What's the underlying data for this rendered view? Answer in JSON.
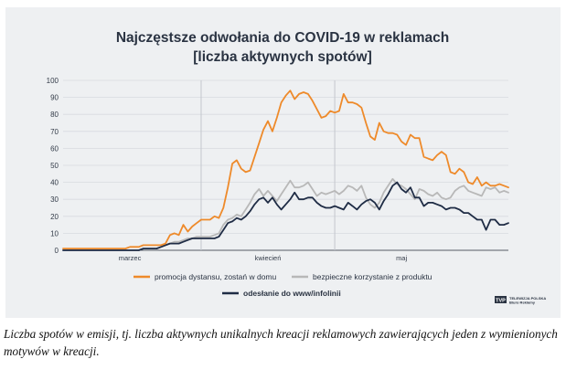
{
  "chart_data": {
    "type": "line",
    "title_lines": [
      "Najczęstsze odwołania do COVID-19 w reklamach",
      "[liczba aktywnych spotów]"
    ],
    "ylim": [
      0,
      100
    ],
    "yticks": [
      0,
      10,
      20,
      30,
      40,
      50,
      60,
      70,
      80,
      90,
      100
    ],
    "month_labels": [
      {
        "label": "marzec",
        "x": 15
      },
      {
        "label": "kwiecień",
        "x": 46
      },
      {
        "label": "maj",
        "x": 76
      }
    ],
    "month_dividers": [
      31,
      61
    ],
    "series": [
      {
        "name": "promocja dystansu, zostań w domu",
        "color": "#ee8a2a",
        "values": [
          1,
          1,
          1,
          1,
          1,
          1,
          1,
          1,
          1,
          1,
          1,
          1,
          1,
          1,
          1,
          2,
          2,
          2,
          3,
          3,
          3,
          3,
          3,
          4,
          9,
          10,
          9,
          15,
          11,
          14,
          16,
          18,
          18,
          18,
          20,
          19,
          25,
          37,
          51,
          53,
          48,
          46,
          47,
          55,
          63,
          71,
          76,
          70,
          78,
          87,
          91,
          94,
          89,
          92,
          93,
          92,
          88,
          83,
          78,
          79,
          82,
          81,
          82,
          92,
          87,
          87,
          86,
          84,
          75,
          67,
          65,
          75,
          70,
          69,
          69,
          68,
          64,
          62,
          68,
          66,
          66,
          55,
          54,
          53,
          56,
          58,
          56,
          46,
          45,
          48,
          46,
          40,
          39,
          43,
          38,
          40,
          38,
          38,
          39,
          38,
          37
        ]
      },
      {
        "name": "bezpieczne korzystanie z produktu",
        "color": "#b8b8b8",
        "values": [
          0,
          0,
          0,
          0,
          0,
          0,
          0,
          0,
          0,
          0,
          0,
          0,
          0,
          0,
          0,
          0,
          0,
          0,
          1,
          1,
          1,
          1,
          2,
          3,
          4,
          5,
          5,
          6,
          7,
          7,
          8,
          8,
          8,
          8,
          9,
          10,
          15,
          18,
          19,
          21,
          20,
          24,
          28,
          33,
          36,
          32,
          35,
          32,
          29,
          33,
          37,
          41,
          37,
          37,
          38,
          40,
          36,
          32,
          34,
          33,
          34,
          35,
          33,
          35,
          38,
          37,
          35,
          38,
          31,
          27,
          25,
          28,
          34,
          38,
          42,
          39,
          38,
          36,
          33,
          30,
          36,
          35,
          33,
          32,
          34,
          31,
          30,
          31,
          35,
          37,
          38,
          35,
          34,
          33,
          32,
          37,
          36,
          37,
          34,
          35,
          34
        ]
      },
      {
        "name": "odesłanie do www/infolinii",
        "color": "#1f2c45",
        "values": [
          0,
          0,
          0,
          0,
          0,
          0,
          0,
          0,
          0,
          0,
          0,
          0,
          0,
          0,
          0,
          0,
          0,
          0,
          1,
          1,
          1,
          1,
          2,
          3,
          4,
          4,
          4,
          5,
          6,
          7,
          7,
          7,
          7,
          7,
          7,
          8,
          12,
          16,
          17,
          19,
          18,
          20,
          23,
          27,
          30,
          31,
          28,
          31,
          27,
          24,
          27,
          30,
          34,
          30,
          30,
          31,
          31,
          28,
          26,
          25,
          25,
          26,
          25,
          24,
          28,
          26,
          24,
          27,
          29,
          30,
          28,
          24,
          29,
          33,
          38,
          40,
          36,
          34,
          37,
          31,
          31,
          26,
          28,
          28,
          27,
          26,
          24,
          25,
          25,
          24,
          22,
          22,
          20,
          18,
          18,
          12,
          18,
          18,
          15,
          15,
          16
        ]
      }
    ],
    "legend": [
      {
        "label": "promocja dystansu, zostań w domu",
        "color": "#ee8a2a",
        "bold": false
      },
      {
        "label": "bezpieczne korzystanie z produktu",
        "color": "#b8b8b8",
        "bold": false
      },
      {
        "label": "odesłanie do www/infolinii",
        "color": "#1f2c45",
        "bold": true
      }
    ]
  },
  "logo": {
    "mark": "TVP",
    "line1": "TELEWIZJA POLSKA",
    "line2": "Biuro Reklamy"
  },
  "caption": "Liczba spotów w emisji, tj. liczba aktywnych unikalnych kreacji reklamowych zawierających jeden z wymienionych motywów w kreacji."
}
